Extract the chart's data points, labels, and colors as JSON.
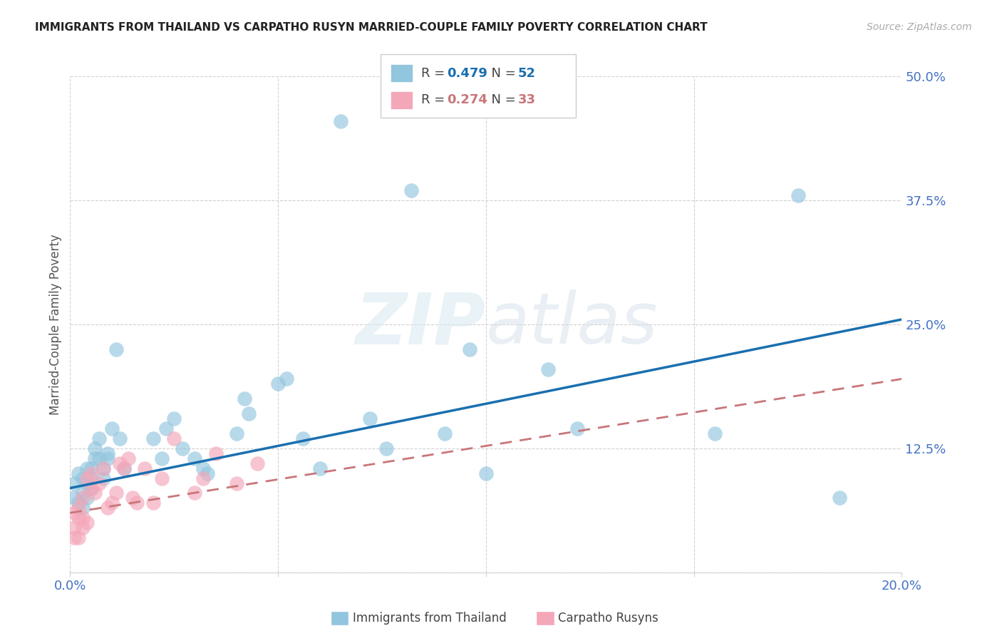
{
  "title": "IMMIGRANTS FROM THAILAND VS CARPATHO RUSYN MARRIED-COUPLE FAMILY POVERTY CORRELATION CHART",
  "source": "Source: ZipAtlas.com",
  "ylabel": "Married-Couple Family Poverty",
  "xlim": [
    0.0,
    0.2
  ],
  "ylim": [
    0.0,
    0.5
  ],
  "xticks": [
    0.0,
    0.05,
    0.1,
    0.15,
    0.2
  ],
  "yticks": [
    0.0,
    0.125,
    0.25,
    0.375,
    0.5
  ],
  "legend_label1": "Immigrants from Thailand",
  "legend_label2": "Carpatho Rusyns",
  "R1": "0.479",
  "N1": "52",
  "R2": "0.274",
  "N2": "33",
  "color_blue": "#92c5de",
  "color_pink": "#f4a7b9",
  "color_line_blue": "#1a6faf",
  "color_line_pink": "#c8767a",
  "watermark_zip": "ZIP",
  "watermark_atlas": "atlas",
  "background_color": "#ffffff",
  "grid_color": "#d0d0d0",
  "tick_color": "#4472C4",
  "blue_line_x0": 0.0,
  "blue_line_y0": 0.085,
  "blue_line_x1": 0.2,
  "blue_line_y1": 0.255,
  "pink_line_x0": 0.0,
  "pink_line_y0": 0.06,
  "pink_line_x1": 0.2,
  "pink_line_y1": 0.195,
  "thailand_x": [
    0.001,
    0.001,
    0.002,
    0.002,
    0.003,
    0.003,
    0.003,
    0.004,
    0.004,
    0.004,
    0.005,
    0.005,
    0.005,
    0.006,
    0.006,
    0.007,
    0.007,
    0.008,
    0.008,
    0.009,
    0.009,
    0.01,
    0.011,
    0.012,
    0.013,
    0.02,
    0.022,
    0.023,
    0.025,
    0.027,
    0.03,
    0.032,
    0.033,
    0.04,
    0.042,
    0.043,
    0.05,
    0.052,
    0.056,
    0.06,
    0.065,
    0.072,
    0.076,
    0.082,
    0.09,
    0.096,
    0.1,
    0.115,
    0.122,
    0.155,
    0.175,
    0.185
  ],
  "thailand_y": [
    0.075,
    0.09,
    0.07,
    0.1,
    0.065,
    0.095,
    0.08,
    0.105,
    0.075,
    0.09,
    0.105,
    0.085,
    0.095,
    0.125,
    0.115,
    0.135,
    0.115,
    0.105,
    0.095,
    0.115,
    0.12,
    0.145,
    0.225,
    0.135,
    0.105,
    0.135,
    0.115,
    0.145,
    0.155,
    0.125,
    0.115,
    0.105,
    0.1,
    0.14,
    0.175,
    0.16,
    0.19,
    0.195,
    0.135,
    0.105,
    0.455,
    0.155,
    0.125,
    0.385,
    0.14,
    0.225,
    0.1,
    0.205,
    0.145,
    0.14,
    0.38,
    0.075
  ],
  "rusyn_x": [
    0.001,
    0.001,
    0.001,
    0.002,
    0.002,
    0.002,
    0.003,
    0.003,
    0.003,
    0.004,
    0.004,
    0.005,
    0.005,
    0.006,
    0.007,
    0.008,
    0.009,
    0.01,
    0.011,
    0.012,
    0.013,
    0.014,
    0.015,
    0.016,
    0.018,
    0.02,
    0.022,
    0.025,
    0.03,
    0.032,
    0.035,
    0.04,
    0.045
  ],
  "rusyn_y": [
    0.045,
    0.06,
    0.035,
    0.065,
    0.035,
    0.055,
    0.055,
    0.075,
    0.045,
    0.05,
    0.095,
    0.085,
    0.1,
    0.08,
    0.09,
    0.105,
    0.065,
    0.07,
    0.08,
    0.11,
    0.105,
    0.115,
    0.075,
    0.07,
    0.105,
    0.07,
    0.095,
    0.135,
    0.08,
    0.095,
    0.12,
    0.09,
    0.11
  ]
}
